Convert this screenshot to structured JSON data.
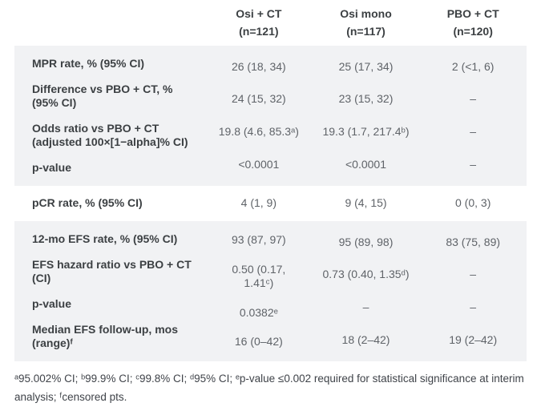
{
  "header": {
    "columns": [
      {
        "name": "Osi + CT",
        "n": "(n=121)"
      },
      {
        "name": "Osi mono",
        "n": "(n=117)"
      },
      {
        "name": "PBO + CT",
        "n": "(n=120)"
      }
    ]
  },
  "sections": [
    {
      "rows": [
        {
          "label": "MPR rate, % (95% CI)",
          "values": [
            "26 (18, 34)",
            "25 (17, 34)",
            "2 (<1, 6)"
          ]
        },
        {
          "label": "Difference vs PBO + CT, %\n(95% CI)",
          "values": [
            "24 (15, 32)",
            "23 (15, 32)",
            "–"
          ]
        },
        {
          "label": "Odds ratio vs PBO + CT\n(adjusted 100×[1−alpha]% CI)",
          "values": [
            "19.8 (4.6, 85.3ᵃ)",
            "19.3 (1.7, 217.4ᵇ)",
            "–"
          ]
        },
        {
          "label": "p-value",
          "values": [
            "<0.0001",
            "<0.0001",
            "–"
          ]
        }
      ]
    },
    {
      "rows": [
        {
          "label": "pCR rate, % (95% CI)",
          "values": [
            "4 (1, 9)",
            "9 (4, 15)",
            "0 (0, 3)"
          ]
        }
      ]
    },
    {
      "rows": [
        {
          "label": "12-mo EFS rate, % (95% CI)",
          "values": [
            "93 (87, 97)",
            "95 (89, 98)",
            "83 (75, 89)"
          ]
        },
        {
          "label": "EFS hazard ratio vs PBO + CT\n(CI)",
          "values": [
            "0.50 (0.17,\n1.41ᶜ)",
            "0.73 (0.40, 1.35ᵈ)",
            "–"
          ]
        },
        {
          "label": "p-value",
          "values": [
            "0.0382ᵉ",
            "–",
            "–"
          ]
        },
        {
          "label": "Median EFS follow-up, mos\n(range)ᶠ",
          "values": [
            "16 (0–42)",
            "18 (2–42)",
            "19 (2–42)"
          ]
        }
      ]
    }
  ],
  "footnote": "ᵃ95.002% CI; ᵇ99.9% CI; ᶜ99.8% CI; ᵈ95% CI; ᵉp-value ≤0.002 required for statistical significance at interim analysis; ᶠcensored pts."
}
